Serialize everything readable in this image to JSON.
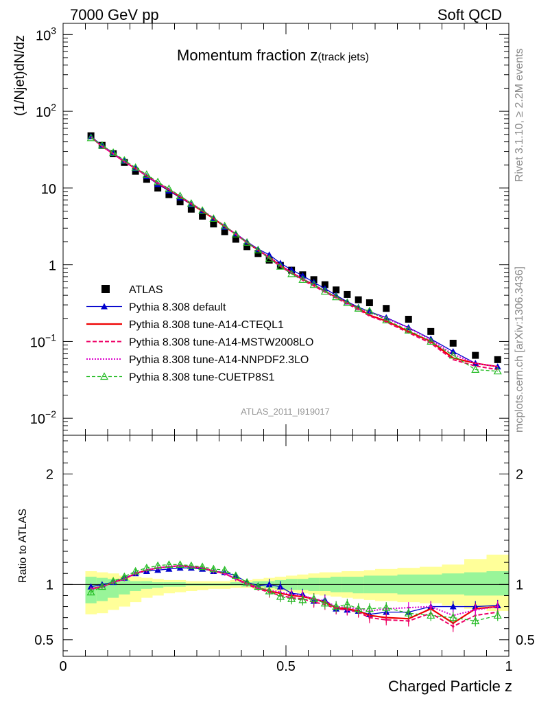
{
  "header": {
    "left": "7000 GeV pp",
    "right": "Soft QCD"
  },
  "main": {
    "title": "Momentum fraction z",
    "title_sub": "(track jets)",
    "ylabel": "(1/Njet)dN/dz",
    "analysis_id": "ATLAS_2011_I919017"
  },
  "ratio": {
    "ylabel": "Ratio to ATLAS"
  },
  "xaxis": {
    "label": "Charged Particle z"
  },
  "side": {
    "rivet": "Rivet 3.1.10, ≥ 2.2M events",
    "mcplots": "mcplots.cern.ch [arXiv:1306.3436]"
  },
  "colors": {
    "data": "#000000",
    "default": "#0000cc",
    "cteql1": "#ee0000",
    "mstw": "#ee0066",
    "nnpdf": "#dd00cc",
    "cuetp8s1": "#22bb22",
    "band_inner": "#99f599",
    "band_outer": "#ffff99"
  },
  "chart_data": [
    {
      "type": "scatter",
      "panel": "main",
      "yscale": "log",
      "xlim": [
        0,
        1
      ],
      "ylim": [
        0.006,
        1400
      ],
      "x_ticks": [
        "0",
        "0.5",
        "1"
      ],
      "y_ticks": [
        "10^-2",
        "10^-1",
        "1",
        "10",
        "10^2",
        "10^3"
      ],
      "legend_position": "center-left",
      "x": [
        0.0625,
        0.0875,
        0.1125,
        0.1375,
        0.1625,
        0.1875,
        0.2125,
        0.2375,
        0.2625,
        0.2875,
        0.3125,
        0.3375,
        0.3625,
        0.3875,
        0.4125,
        0.4375,
        0.4625,
        0.4875,
        0.5125,
        0.5375,
        0.5625,
        0.5875,
        0.6125,
        0.6375,
        0.6625,
        0.6875,
        0.725,
        0.775,
        0.825,
        0.875,
        0.925,
        0.975
      ],
      "series": [
        {
          "name": "ATLAS",
          "key": "data",
          "style": "square",
          "values": [
            48,
            36,
            28,
            21.5,
            16.5,
            13,
            10,
            8.2,
            6.6,
            5.3,
            4.3,
            3.4,
            2.7,
            2.15,
            1.72,
            1.4,
            1.15,
            0.98,
            0.85,
            0.74,
            0.64,
            0.55,
            0.47,
            0.41,
            0.35,
            0.32,
            0.27,
            0.195,
            0.135,
            0.095,
            0.066,
            0.058
          ]
        },
        {
          "name": "Pythia 8.308 default",
          "key": "default",
          "style": "line-tri",
          "values": [
            47,
            36,
            28.5,
            22.5,
            18,
            14.2,
            11.2,
            9.2,
            7.5,
            6.1,
            5.0,
            4.0,
            3.1,
            2.55,
            2.0,
            1.6,
            1.35,
            1.05,
            0.86,
            0.72,
            0.59,
            0.49,
            0.4,
            0.33,
            0.28,
            0.245,
            0.205,
            0.152,
            0.108,
            0.074,
            0.052,
            0.047
          ]
        },
        {
          "name": "Pythia 8.308 tune-A14-CTEQL1",
          "key": "cteql1",
          "style": "line",
          "values": [
            46,
            35,
            28,
            22,
            18,
            14.5,
            11.5,
            9.5,
            7.7,
            6.2,
            5.0,
            4.0,
            3.15,
            2.5,
            1.95,
            1.55,
            1.25,
            0.98,
            0.79,
            0.65,
            0.55,
            0.45,
            0.38,
            0.32,
            0.27,
            0.22,
            0.185,
            0.135,
            0.1,
            0.061,
            0.052,
            0.047
          ]
        },
        {
          "name": "Pythia 8.308 tune-A14-MSTW2008LO",
          "key": "mstw",
          "style": "dashed",
          "values": [
            46,
            35,
            28,
            22,
            18,
            14.6,
            11.6,
            9.6,
            7.8,
            6.3,
            5.1,
            4.05,
            3.2,
            2.5,
            1.95,
            1.55,
            1.22,
            0.95,
            0.77,
            0.63,
            0.53,
            0.44,
            0.37,
            0.31,
            0.26,
            0.215,
            0.18,
            0.13,
            0.095,
            0.058,
            0.048,
            0.043
          ]
        },
        {
          "name": "Pythia 8.308 tune-A14-NNPDF2.3LO",
          "key": "nnpdf",
          "style": "dotted",
          "values": [
            46,
            35,
            28,
            22,
            18,
            14.6,
            11.6,
            9.6,
            7.8,
            6.3,
            5.1,
            4.05,
            3.2,
            2.5,
            1.95,
            1.55,
            1.25,
            0.98,
            0.79,
            0.66,
            0.55,
            0.45,
            0.38,
            0.32,
            0.27,
            0.24,
            0.2,
            0.15,
            0.105,
            0.068,
            0.052,
            0.047
          ]
        },
        {
          "name": "Pythia 8.308 tune-CUETP8S1",
          "key": "cuetp8s1",
          "style": "dashed-tri",
          "values": [
            45,
            36,
            29,
            23,
            18.5,
            15,
            12,
            9.8,
            7.9,
            6.3,
            5.1,
            4.0,
            3.2,
            2.5,
            1.95,
            1.55,
            1.2,
            0.95,
            0.76,
            0.64,
            0.55,
            0.45,
            0.38,
            0.32,
            0.27,
            0.25,
            0.19,
            0.14,
            0.1,
            0.066,
            0.043,
            0.041
          ]
        }
      ]
    },
    {
      "type": "line",
      "panel": "ratio",
      "ylim": [
        0.35,
        2.35
      ],
      "y_ticks": [
        "0.5",
        "1",
        "2"
      ],
      "reference_line": 1,
      "x": [
        0.0625,
        0.0875,
        0.1125,
        0.1375,
        0.1625,
        0.1875,
        0.2125,
        0.2375,
        0.2625,
        0.2875,
        0.3125,
        0.3375,
        0.3625,
        0.3875,
        0.4125,
        0.4375,
        0.4625,
        0.4875,
        0.5125,
        0.5375,
        0.5625,
        0.5875,
        0.6125,
        0.6375,
        0.6625,
        0.6875,
        0.725,
        0.775,
        0.825,
        0.875,
        0.925,
        0.975
      ],
      "band": {
        "edges": [
          0.05,
          0.075,
          0.1,
          0.125,
          0.15,
          0.175,
          0.2,
          0.225,
          0.25,
          0.275,
          0.3,
          0.325,
          0.35,
          0.375,
          0.4,
          0.425,
          0.45,
          0.475,
          0.5,
          0.525,
          0.55,
          0.575,
          0.6,
          0.625,
          0.65,
          0.675,
          0.7,
          0.75,
          0.8,
          0.85,
          0.9,
          0.95,
          1.0
        ],
        "inner_lo": [
          0.83,
          0.85,
          0.88,
          0.91,
          0.94,
          0.96,
          0.97,
          0.98,
          0.98,
          0.99,
          0.99,
          0.99,
          0.99,
          0.99,
          0.98,
          0.98,
          0.97,
          0.96,
          0.95,
          0.95,
          0.94,
          0.94,
          0.93,
          0.93,
          0.92,
          0.92,
          0.92,
          0.91,
          0.91,
          0.91,
          0.9,
          0.9
        ],
        "inner_hi": [
          1.07,
          1.06,
          1.05,
          1.04,
          1.03,
          1.03,
          1.02,
          1.02,
          1.02,
          1.01,
          1.01,
          1.01,
          1.01,
          1.02,
          1.02,
          1.03,
          1.03,
          1.04,
          1.05,
          1.05,
          1.06,
          1.06,
          1.07,
          1.07,
          1.07,
          1.08,
          1.08,
          1.09,
          1.09,
          1.1,
          1.11,
          1.12
        ],
        "outer_lo": [
          0.73,
          0.74,
          0.77,
          0.8,
          0.84,
          0.88,
          0.9,
          0.92,
          0.93,
          0.94,
          0.95,
          0.96,
          0.96,
          0.97,
          0.97,
          0.96,
          0.95,
          0.94,
          0.93,
          0.92,
          0.91,
          0.9,
          0.89,
          0.88,
          0.87,
          0.86,
          0.85,
          0.84,
          0.83,
          0.81,
          0.78,
          0.76
        ],
        "outer_hi": [
          1.12,
          1.11,
          1.1,
          1.08,
          1.07,
          1.06,
          1.05,
          1.04,
          1.04,
          1.03,
          1.03,
          1.03,
          1.03,
          1.04,
          1.04,
          1.05,
          1.06,
          1.07,
          1.08,
          1.09,
          1.1,
          1.11,
          1.11,
          1.12,
          1.12,
          1.13,
          1.14,
          1.15,
          1.16,
          1.18,
          1.23,
          1.27
        ]
      },
      "series": [
        {
          "name": "Pythia 8.308 default",
          "key": "default",
          "values": [
            0.98,
            1.0,
            1.02,
            1.06,
            1.1,
            1.12,
            1.13,
            1.14,
            1.15,
            1.15,
            1.14,
            1.12,
            1.11,
            1.08,
            1.02,
            0.99,
            1.0,
            0.98,
            0.92,
            0.91,
            0.85,
            0.86,
            0.78,
            0.77,
            0.76,
            0.73,
            0.75,
            0.75,
            0.8,
            0.8,
            0.8,
            0.81
          ]
        },
        {
          "name": "Pythia 8.308 tune-A14-CTEQL1",
          "key": "cteql1",
          "values": [
            0.96,
            0.98,
            1.02,
            1.05,
            1.1,
            1.13,
            1.15,
            1.16,
            1.17,
            1.16,
            1.15,
            1.12,
            1.1,
            1.05,
            1.01,
            0.97,
            0.94,
            0.92,
            0.9,
            0.89,
            0.87,
            0.84,
            0.79,
            0.78,
            0.76,
            0.72,
            0.7,
            0.69,
            0.78,
            0.65,
            0.78,
            0.8
          ]
        },
        {
          "name": "Pythia 8.308 tune-A14-MSTW2008LO",
          "key": "mstw",
          "values": [
            0.96,
            0.98,
            1.02,
            1.05,
            1.1,
            1.13,
            1.15,
            1.16,
            1.17,
            1.16,
            1.15,
            1.12,
            1.1,
            1.05,
            1.0,
            0.96,
            0.93,
            0.9,
            0.88,
            0.87,
            0.84,
            0.82,
            0.78,
            0.77,
            0.75,
            0.7,
            0.68,
            0.67,
            0.74,
            0.62,
            0.72,
            0.75
          ]
        },
        {
          "name": "Pythia 8.308 tune-A14-NNPDF2.3LO",
          "key": "nnpdf",
          "values": [
            0.96,
            0.98,
            1.02,
            1.05,
            1.1,
            1.13,
            1.15,
            1.16,
            1.17,
            1.16,
            1.15,
            1.12,
            1.1,
            1.05,
            1.01,
            0.97,
            0.95,
            0.93,
            0.91,
            0.9,
            0.87,
            0.85,
            0.8,
            0.79,
            0.78,
            0.76,
            0.78,
            0.79,
            0.8,
            0.72,
            0.77,
            0.8
          ]
        },
        {
          "name": "Pythia 8.308 tune-CUETP8S1",
          "key": "cuetp8s1",
          "values": [
            0.93,
            0.98,
            1.03,
            1.07,
            1.12,
            1.15,
            1.17,
            1.18,
            1.18,
            1.17,
            1.16,
            1.14,
            1.13,
            1.08,
            1.02,
            0.98,
            0.94,
            0.89,
            0.87,
            0.86,
            0.87,
            0.83,
            0.8,
            0.82,
            0.78,
            0.78,
            0.79,
            0.74,
            0.72,
            0.7,
            0.67,
            0.72
          ]
        }
      ]
    }
  ]
}
